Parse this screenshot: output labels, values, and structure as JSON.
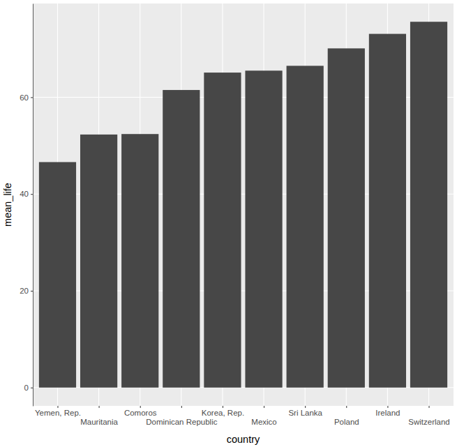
{
  "chart_data": {
    "type": "bar",
    "x_label": "country",
    "y_label": "mean_life",
    "categories": [
      "Yemen, Rep.",
      "Mauritania",
      "Comoros",
      "Dominican Republic",
      "Korea, Rep.",
      "Mexico",
      "Sri Lanka",
      "Poland",
      "Ireland",
      "Switzerland"
    ],
    "values": [
      46.6,
      52.3,
      52.4,
      61.5,
      65.1,
      65.5,
      66.5,
      70.1,
      73.1,
      75.6
    ],
    "color": "#474747",
    "ylim": [
      -3.78,
      79.38
    ],
    "yticks": [
      0,
      20,
      40,
      60
    ],
    "grid": true
  }
}
